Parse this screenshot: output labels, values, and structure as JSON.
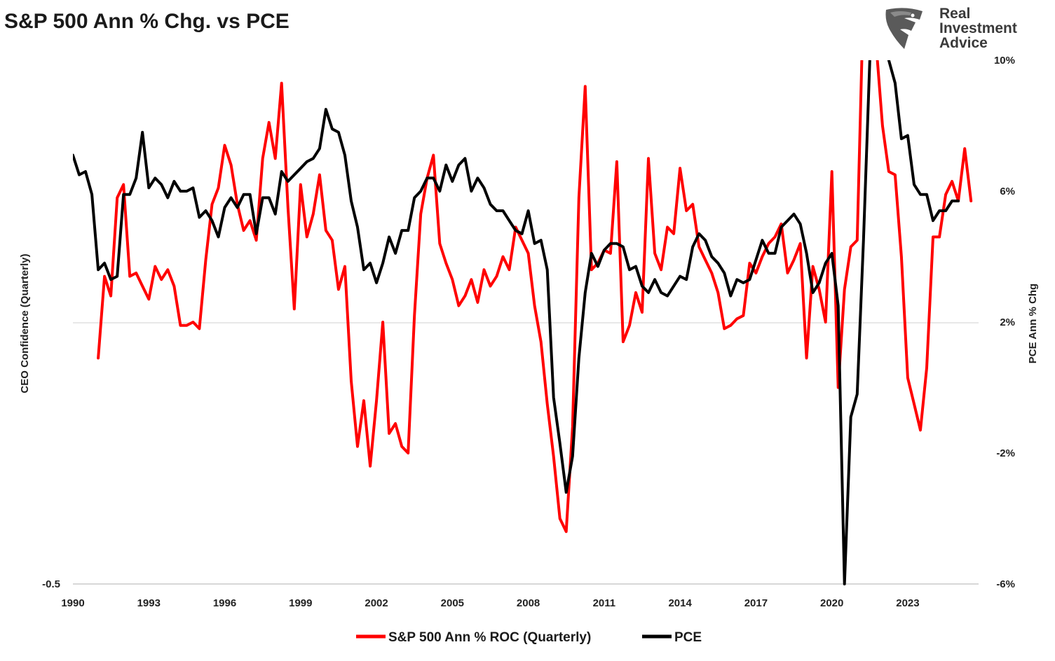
{
  "chart_data": {
    "type": "line",
    "title": "S&P 500 Ann % Chg. vs PCE",
    "brand": [
      "Real",
      "Investment",
      "Advice"
    ],
    "ylabel_left": "CEO Confidence (Quarterly)",
    "ylabel_right": "PCE Ann % Chg",
    "left_tick_labels": [
      "-0.5"
    ],
    "right_tick_labels": [
      "10%",
      "6%",
      "2%",
      "-2%",
      "-6%"
    ],
    "ylim_right": [
      -6,
      10
    ],
    "x_tick_labels": [
      "1990",
      "1993",
      "1996",
      "1999",
      "2002",
      "2005",
      "2008",
      "2011",
      "2014",
      "2017",
      "2020",
      "2023"
    ],
    "xlim": [
      1990,
      2025.8
    ],
    "grid": "horizontal at 2%",
    "legend_position": "bottom",
    "colors": {
      "sp500": "#ff0000",
      "pce": "#000000",
      "grid": "#d9d9d9",
      "axis": "#bfbfbf"
    },
    "series": [
      {
        "name": "S&P 500 Ann % ROC (Quarterly)",
        "color": "#ff0000",
        "points": [
          [
            1991.0,
            0.9
          ],
          [
            1991.25,
            3.4
          ],
          [
            1991.5,
            2.8
          ],
          [
            1991.75,
            5.8
          ],
          [
            1992.0,
            6.2
          ],
          [
            1992.25,
            3.4
          ],
          [
            1992.5,
            3.5
          ],
          [
            1992.75,
            3.1
          ],
          [
            1993.0,
            2.7
          ],
          [
            1993.25,
            3.7
          ],
          [
            1993.5,
            3.3
          ],
          [
            1993.75,
            3.6
          ],
          [
            1994.0,
            3.1
          ],
          [
            1994.25,
            1.9
          ],
          [
            1994.5,
            1.9
          ],
          [
            1994.75,
            2.0
          ],
          [
            1995.0,
            1.8
          ],
          [
            1995.25,
            3.9
          ],
          [
            1995.5,
            5.6
          ],
          [
            1995.75,
            6.1
          ],
          [
            1996.0,
            7.4
          ],
          [
            1996.25,
            6.8
          ],
          [
            1996.5,
            5.6
          ],
          [
            1996.75,
            4.8
          ],
          [
            1997.0,
            5.1
          ],
          [
            1997.25,
            4.5
          ],
          [
            1997.5,
            7.0
          ],
          [
            1997.75,
            8.1
          ],
          [
            1998.0,
            7.0
          ],
          [
            1998.25,
            9.3
          ],
          [
            1998.5,
            5.5
          ],
          [
            1998.75,
            2.4
          ],
          [
            1999.0,
            6.2
          ],
          [
            1999.25,
            4.6
          ],
          [
            1999.5,
            5.3
          ],
          [
            1999.75,
            6.5
          ],
          [
            2000.0,
            4.8
          ],
          [
            2000.25,
            4.5
          ],
          [
            2000.5,
            3.0
          ],
          [
            2000.75,
            3.7
          ],
          [
            2001.0,
            0.2
          ],
          [
            2001.25,
            -1.8
          ],
          [
            2001.5,
            -0.4
          ],
          [
            2001.75,
            -2.4
          ],
          [
            2002.0,
            -0.4
          ],
          [
            2002.25,
            2.0
          ],
          [
            2002.5,
            -1.4
          ],
          [
            2002.75,
            -1.1
          ],
          [
            2003.0,
            -1.8
          ],
          [
            2003.25,
            -2.0
          ],
          [
            2003.5,
            2.2
          ],
          [
            2003.75,
            5.3
          ],
          [
            2004.0,
            6.4
          ],
          [
            2004.25,
            7.1
          ],
          [
            2004.5,
            4.4
          ],
          [
            2004.75,
            3.8
          ],
          [
            2005.0,
            3.3
          ],
          [
            2005.25,
            2.5
          ],
          [
            2005.5,
            2.8
          ],
          [
            2005.75,
            3.3
          ],
          [
            2006.0,
            2.6
          ],
          [
            2006.25,
            3.6
          ],
          [
            2006.5,
            3.1
          ],
          [
            2006.75,
            3.4
          ],
          [
            2007.0,
            4.0
          ],
          [
            2007.25,
            3.6
          ],
          [
            2007.5,
            4.9
          ],
          [
            2007.75,
            4.5
          ],
          [
            2008.0,
            4.1
          ],
          [
            2008.25,
            2.5
          ],
          [
            2008.5,
            1.4
          ],
          [
            2008.75,
            -0.5
          ],
          [
            2009.0,
            -2.1
          ],
          [
            2009.25,
            -4.0
          ],
          [
            2009.5,
            -4.4
          ],
          [
            2009.75,
            -1.2
          ],
          [
            2010.0,
            5.8
          ],
          [
            2010.25,
            9.2
          ],
          [
            2010.5,
            3.6
          ],
          [
            2010.75,
            3.8
          ],
          [
            2011.0,
            4.2
          ],
          [
            2011.25,
            4.1
          ],
          [
            2011.5,
            6.9
          ],
          [
            2011.75,
            1.4
          ],
          [
            2012.0,
            1.9
          ],
          [
            2012.25,
            2.9
          ],
          [
            2012.5,
            2.3
          ],
          [
            2012.75,
            7.0
          ],
          [
            2013.0,
            4.1
          ],
          [
            2013.25,
            3.6
          ],
          [
            2013.5,
            4.9
          ],
          [
            2013.75,
            4.7
          ],
          [
            2014.0,
            6.7
          ],
          [
            2014.25,
            5.4
          ],
          [
            2014.5,
            5.6
          ],
          [
            2014.75,
            4.3
          ],
          [
            2015.0,
            3.9
          ],
          [
            2015.25,
            3.5
          ],
          [
            2015.5,
            2.9
          ],
          [
            2015.75,
            1.8
          ],
          [
            2016.0,
            1.9
          ],
          [
            2016.25,
            2.1
          ],
          [
            2016.5,
            2.2
          ],
          [
            2016.75,
            3.8
          ],
          [
            2017.0,
            3.5
          ],
          [
            2017.25,
            4.0
          ],
          [
            2017.5,
            4.4
          ],
          [
            2017.75,
            4.6
          ],
          [
            2018.0,
            5.0
          ],
          [
            2018.25,
            3.5
          ],
          [
            2018.5,
            3.9
          ],
          [
            2018.75,
            4.4
          ],
          [
            2019.0,
            0.9
          ],
          [
            2019.25,
            3.7
          ],
          [
            2019.5,
            3.0
          ],
          [
            2019.75,
            2.0
          ],
          [
            2020.0,
            6.6
          ],
          [
            2020.25,
            0.0
          ],
          [
            2020.5,
            3.0
          ],
          [
            2020.75,
            4.3
          ],
          [
            2021.0,
            4.5
          ],
          [
            2021.25,
            12.0
          ],
          [
            2021.5,
            13.0
          ],
          [
            2021.75,
            10.5
          ],
          [
            2022.0,
            8.0
          ],
          [
            2022.25,
            6.6
          ],
          [
            2022.5,
            6.5
          ],
          [
            2022.75,
            4.0
          ],
          [
            2023.0,
            0.3
          ],
          [
            2023.25,
            -0.5
          ],
          [
            2023.5,
            -1.3
          ],
          [
            2023.75,
            0.6
          ],
          [
            2024.0,
            4.6
          ],
          [
            2024.25,
            4.6
          ],
          [
            2024.5,
            5.9
          ],
          [
            2024.75,
            6.3
          ],
          [
            2025.0,
            5.7
          ],
          [
            2025.25,
            7.3
          ],
          [
            2025.5,
            5.7
          ]
        ]
      },
      {
        "name": "PCE",
        "color": "#000000",
        "points": [
          [
            1990.0,
            7.1
          ],
          [
            1990.25,
            6.5
          ],
          [
            1990.5,
            6.6
          ],
          [
            1990.75,
            5.9
          ],
          [
            1991.0,
            3.6
          ],
          [
            1991.25,
            3.8
          ],
          [
            1991.5,
            3.3
          ],
          [
            1991.75,
            3.4
          ],
          [
            1992.0,
            5.9
          ],
          [
            1992.25,
            5.9
          ],
          [
            1992.5,
            6.4
          ],
          [
            1992.75,
            7.8
          ],
          [
            1993.0,
            6.1
          ],
          [
            1993.25,
            6.4
          ],
          [
            1993.5,
            6.2
          ],
          [
            1993.75,
            5.8
          ],
          [
            1994.0,
            6.3
          ],
          [
            1994.25,
            6.0
          ],
          [
            1994.5,
            6.0
          ],
          [
            1994.75,
            6.1
          ],
          [
            1995.0,
            5.2
          ],
          [
            1995.25,
            5.4
          ],
          [
            1995.5,
            5.1
          ],
          [
            1995.75,
            4.6
          ],
          [
            1996.0,
            5.5
          ],
          [
            1996.25,
            5.8
          ],
          [
            1996.5,
            5.5
          ],
          [
            1996.75,
            5.9
          ],
          [
            1997.0,
            5.9
          ],
          [
            1997.25,
            4.7
          ],
          [
            1997.5,
            5.8
          ],
          [
            1997.75,
            5.8
          ],
          [
            1998.0,
            5.3
          ],
          [
            1998.25,
            6.6
          ],
          [
            1998.5,
            6.3
          ],
          [
            1998.75,
            6.5
          ],
          [
            1999.0,
            6.7
          ],
          [
            1999.25,
            6.9
          ],
          [
            1999.5,
            7.0
          ],
          [
            1999.75,
            7.3
          ],
          [
            2000.0,
            8.5
          ],
          [
            2000.25,
            7.9
          ],
          [
            2000.5,
            7.8
          ],
          [
            2000.75,
            7.1
          ],
          [
            2001.0,
            5.7
          ],
          [
            2001.25,
            4.9
          ],
          [
            2001.5,
            3.6
          ],
          [
            2001.75,
            3.8
          ],
          [
            2002.0,
            3.2
          ],
          [
            2002.25,
            3.8
          ],
          [
            2002.5,
            4.6
          ],
          [
            2002.75,
            4.1
          ],
          [
            2003.0,
            4.8
          ],
          [
            2003.25,
            4.8
          ],
          [
            2003.5,
            5.8
          ],
          [
            2003.75,
            6.0
          ],
          [
            2004.0,
            6.4
          ],
          [
            2004.25,
            6.4
          ],
          [
            2004.5,
            6.0
          ],
          [
            2004.75,
            6.8
          ],
          [
            2005.0,
            6.3
          ],
          [
            2005.25,
            6.8
          ],
          [
            2005.5,
            7.0
          ],
          [
            2005.75,
            6.0
          ],
          [
            2006.0,
            6.4
          ],
          [
            2006.25,
            6.1
          ],
          [
            2006.5,
            5.6
          ],
          [
            2006.75,
            5.4
          ],
          [
            2007.0,
            5.4
          ],
          [
            2007.25,
            5.1
          ],
          [
            2007.5,
            4.8
          ],
          [
            2007.75,
            4.7
          ],
          [
            2008.0,
            5.4
          ],
          [
            2008.25,
            4.4
          ],
          [
            2008.5,
            4.5
          ],
          [
            2008.75,
            3.6
          ],
          [
            2009.0,
            -0.3
          ],
          [
            2009.25,
            -1.7
          ],
          [
            2009.5,
            -3.2
          ],
          [
            2009.75,
            -2.1
          ],
          [
            2010.0,
            0.9
          ],
          [
            2010.25,
            2.9
          ],
          [
            2010.5,
            4.1
          ],
          [
            2010.75,
            3.7
          ],
          [
            2011.0,
            4.2
          ],
          [
            2011.25,
            4.4
          ],
          [
            2011.5,
            4.4
          ],
          [
            2011.75,
            4.3
          ],
          [
            2012.0,
            3.6
          ],
          [
            2012.25,
            3.7
          ],
          [
            2012.5,
            3.1
          ],
          [
            2012.75,
            2.9
          ],
          [
            2013.0,
            3.3
          ],
          [
            2013.25,
            2.9
          ],
          [
            2013.5,
            2.8
          ],
          [
            2013.75,
            3.1
          ],
          [
            2014.0,
            3.4
          ],
          [
            2014.25,
            3.3
          ],
          [
            2014.5,
            4.3
          ],
          [
            2014.75,
            4.7
          ],
          [
            2015.0,
            4.5
          ],
          [
            2015.25,
            4.0
          ],
          [
            2015.5,
            3.8
          ],
          [
            2015.75,
            3.5
          ],
          [
            2016.0,
            2.8
          ],
          [
            2016.25,
            3.3
          ],
          [
            2016.5,
            3.2
          ],
          [
            2016.75,
            3.3
          ],
          [
            2017.0,
            3.9
          ],
          [
            2017.25,
            4.5
          ],
          [
            2017.5,
            4.1
          ],
          [
            2017.75,
            4.1
          ],
          [
            2018.0,
            4.9
          ],
          [
            2018.25,
            5.1
          ],
          [
            2018.5,
            5.3
          ],
          [
            2018.75,
            5.0
          ],
          [
            2019.0,
            4.1
          ],
          [
            2019.25,
            2.9
          ],
          [
            2019.5,
            3.2
          ],
          [
            2019.75,
            3.8
          ],
          [
            2020.0,
            4.1
          ],
          [
            2020.25,
            2.5
          ],
          [
            2020.5,
            -6.0
          ],
          [
            2020.75,
            -0.9
          ],
          [
            2021.0,
            -0.2
          ],
          [
            2021.25,
            4.5
          ],
          [
            2021.5,
            10.0
          ],
          [
            2021.75,
            13.0
          ],
          [
            2022.0,
            13.0
          ],
          [
            2022.25,
            10.0
          ],
          [
            2022.5,
            9.3
          ],
          [
            2022.75,
            7.6
          ],
          [
            2023.0,
            7.7
          ],
          [
            2023.25,
            6.2
          ],
          [
            2023.5,
            5.9
          ],
          [
            2023.75,
            5.9
          ],
          [
            2024.0,
            5.1
          ],
          [
            2024.25,
            5.4
          ],
          [
            2024.5,
            5.4
          ],
          [
            2024.75,
            5.7
          ],
          [
            2025.0,
            5.7
          ]
        ]
      }
    ]
  }
}
